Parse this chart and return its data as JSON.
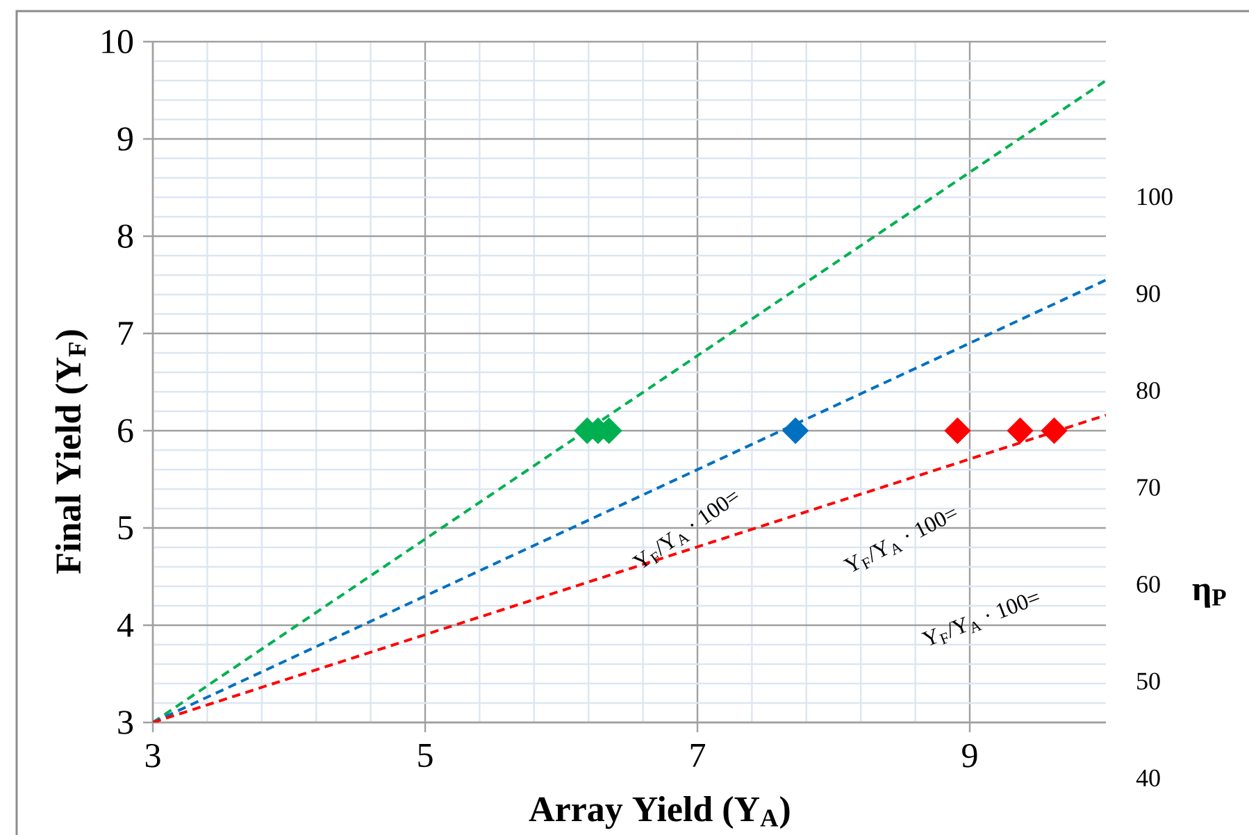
{
  "chart_data": {
    "type": "scatter",
    "xlabel": "Array Yield (Y$_{A}$)",
    "ylabel": "Final Yield (Y$_{F}$)",
    "y2label": "η$_{P}$",
    "xlim": [
      3,
      10
    ],
    "xticks": [
      3,
      5,
      7,
      9
    ],
    "ylim": [
      3,
      10
    ],
    "yticks": [
      3,
      4,
      5,
      6,
      7,
      8,
      9,
      10
    ],
    "y2lim": [
      40,
      116
    ],
    "y2ticks": [
      40,
      50,
      60,
      70,
      80,
      90,
      100
    ],
    "grid": true,
    "marker": "diamond",
    "series": [
      {
        "type": "line",
        "line_style": "dashed",
        "marker": "none",
        "color": "#00b050",
        "x": [
          3,
          10
        ],
        "values": [
          3,
          9.6
        ]
      },
      {
        "type": "line",
        "line_style": "dashed",
        "marker": "none",
        "color": "#0070c0",
        "x": [
          3,
          10
        ],
        "values": [
          3,
          7.55
        ]
      },
      {
        "type": "line",
        "line_style": "dashed",
        "marker": "none",
        "color": "#ff0000",
        "x": [
          3,
          10
        ],
        "values": [
          3,
          6.16
        ]
      },
      {
        "color": "#00b050",
        "x": [
          6.19,
          6.27,
          6.35
        ],
        "values": [
          6,
          6,
          6
        ]
      },
      {
        "color": "#0070c0",
        "x": [
          7.72
        ],
        "values": [
          6
        ]
      },
      {
        "color": "#ff0000",
        "x": [
          8.91,
          9.37,
          9.62
        ],
        "values": [
          6,
          6,
          6
        ]
      }
    ],
    "annotations": [
      "Y$_{F}$/Y$_{A}$ · 100=",
      "Y$_{F}$/Y$_{A}$ · 100=",
      "Y$_{F}$/Y$_{A}$ · 100="
    ]
  }
}
